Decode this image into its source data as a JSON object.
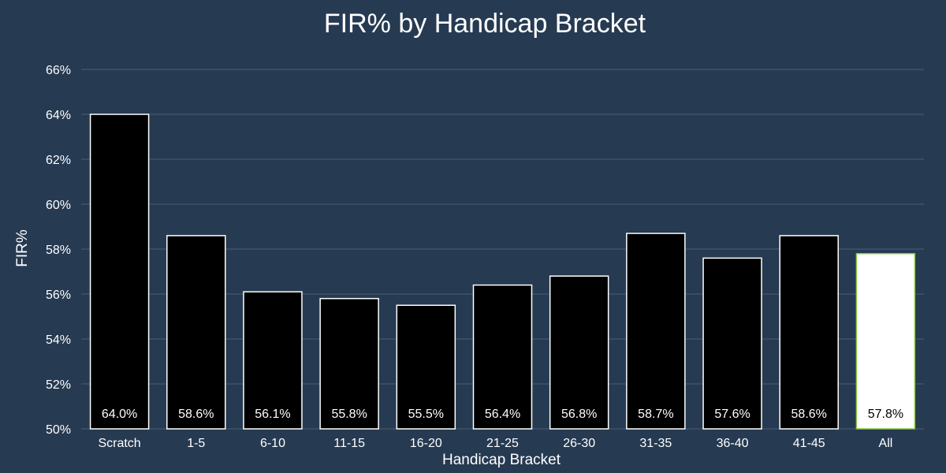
{
  "chart_data": {
    "type": "bar",
    "title": "FIR% by Handicap Bracket",
    "xlabel": "Handicap Bracket",
    "ylabel": "FIR%",
    "ylim": [
      50,
      66
    ],
    "yticks": [
      50,
      52,
      54,
      56,
      58,
      60,
      62,
      64,
      66
    ],
    "ytick_labels": [
      "50%",
      "52%",
      "54%",
      "56%",
      "58%",
      "60%",
      "62%",
      "64%",
      "66%"
    ],
    "grid": true,
    "categories": [
      "Scratch",
      "1-5",
      "6-10",
      "11-15",
      "16-20",
      "21-25",
      "26-30",
      "31-35",
      "36-40",
      "41-45",
      "All"
    ],
    "values": [
      64.0,
      58.6,
      56.1,
      55.8,
      55.5,
      56.4,
      56.8,
      58.7,
      57.6,
      58.6,
      57.8
    ],
    "value_labels": [
      "64.0%",
      "58.6%",
      "56.1%",
      "55.8%",
      "55.5%",
      "56.4%",
      "56.8%",
      "58.7%",
      "57.6%",
      "58.6%",
      "57.8%"
    ],
    "highlight_category": "All",
    "colors": {
      "background": "#263a52",
      "bar_fill": "#000000",
      "bar_stroke": "#ffffff",
      "highlight_fill": "#ffffff",
      "highlight_stroke": "#8dc63f",
      "grid": "#4a5d74",
      "text": "#ffffff"
    }
  }
}
